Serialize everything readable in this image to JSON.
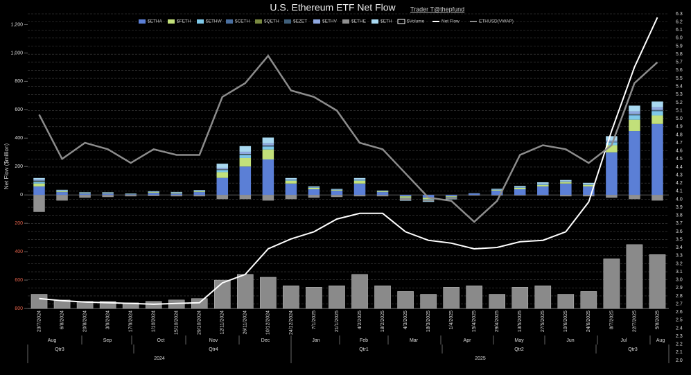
{
  "chart_data": {
    "type": "bar",
    "title": "U.S. Ethereum ETF Net Flow",
    "subtitle": "Trader T@thepfund",
    "y_label": "Net Flow ($million)",
    "categories": [
      "23/7/2024",
      "6/8/2024",
      "20/8/2024",
      "3/9/2024",
      "17/9/2024",
      "1/10/2024",
      "15/10/2024",
      "29/10/2024",
      "12/11/2024",
      "26/11/2024",
      "10/12/2024",
      "24/12/2024",
      "7/1/2025",
      "21/1/2025",
      "4/2/2025",
      "18/2/2025",
      "4/3/2025",
      "18/3/2025",
      "1/4/2025",
      "15/4/2025",
      "29/4/2025",
      "13/5/2025",
      "27/5/2025",
      "10/6/2025",
      "24/6/2025",
      "8/7/2025",
      "22/7/2025",
      "5/8/2025"
    ],
    "months": [
      "Aug",
      "Sep",
      "Oct",
      "Nov",
      "Dec",
      "Jan",
      "Feb",
      "Mar",
      "Apr",
      "May",
      "Jun",
      "Jul",
      "Aug"
    ],
    "quarters": [
      "Qtr3",
      "Qtr4",
      "Qtr1",
      "Qtr2",
      "Qtr3"
    ],
    "years": [
      "2024",
      "2025"
    ],
    "series": [
      {
        "name": "$ETHA",
        "color": "#5b7fd6",
        "values": [
          60,
          20,
          10,
          10,
          5,
          15,
          10,
          20,
          120,
          200,
          250,
          80,
          40,
          30,
          80,
          20,
          -10,
          -20,
          -10,
          10,
          30,
          40,
          60,
          80,
          60,
          300,
          450,
          500
        ]
      },
      {
        "name": "$FETH",
        "color": "#c2e07a",
        "values": [
          20,
          5,
          3,
          3,
          2,
          5,
          5,
          5,
          40,
          60,
          70,
          20,
          10,
          5,
          20,
          5,
          -10,
          -10,
          -5,
          0,
          5,
          10,
          10,
          10,
          10,
          50,
          80,
          60
        ]
      },
      {
        "name": "$ETHW",
        "color": "#7ec8e8",
        "values": [
          10,
          3,
          2,
          2,
          1,
          2,
          2,
          3,
          15,
          20,
          20,
          5,
          3,
          2,
          5,
          2,
          -2,
          -3,
          -2,
          0,
          2,
          3,
          5,
          3,
          3,
          20,
          30,
          30
        ]
      },
      {
        "name": "$CETH",
        "color": "#4a6fa0",
        "values": [
          5,
          1,
          0,
          0,
          0,
          0,
          0,
          1,
          3,
          5,
          5,
          1,
          0,
          0,
          1,
          0,
          0,
          0,
          0,
          0,
          0,
          0,
          1,
          0,
          0,
          2,
          5,
          5
        ]
      },
      {
        "name": "$QETH",
        "color": "#7a8a40",
        "values": [
          3,
          0,
          0,
          0,
          0,
          0,
          0,
          0,
          1,
          2,
          2,
          0,
          0,
          0,
          0,
          0,
          0,
          0,
          0,
          0,
          0,
          0,
          0,
          0,
          0,
          1,
          2,
          1
        ]
      },
      {
        "name": "$EZET",
        "color": "#3f5f7a",
        "values": [
          3,
          0,
          0,
          0,
          0,
          0,
          0,
          0,
          1,
          2,
          2,
          0,
          0,
          0,
          0,
          0,
          0,
          0,
          0,
          0,
          0,
          0,
          0,
          0,
          0,
          1,
          2,
          2
        ]
      },
      {
        "name": "$ETHV",
        "color": "#8fa8e0",
        "values": [
          8,
          2,
          1,
          1,
          0,
          1,
          1,
          1,
          10,
          15,
          15,
          3,
          2,
          1,
          3,
          1,
          -1,
          -1,
          -1,
          0,
          1,
          2,
          3,
          2,
          2,
          10,
          20,
          20
        ]
      },
      {
        "name": "$ETHE",
        "color": "#909090",
        "values": [
          -120,
          -40,
          -20,
          -15,
          -10,
          -8,
          -10,
          -10,
          -30,
          -30,
          -40,
          -30,
          -20,
          -15,
          -10,
          -10,
          -15,
          -10,
          -10,
          -5,
          -5,
          -5,
          -5,
          -10,
          -10,
          -20,
          -30,
          -40
        ]
      },
      {
        "name": "$ETH",
        "color": "#a8d8f0",
        "values": [
          10,
          5,
          3,
          3,
          2,
          3,
          3,
          4,
          30,
          40,
          40,
          10,
          5,
          4,
          10,
          3,
          -3,
          -5,
          -3,
          2,
          5,
          8,
          10,
          10,
          10,
          30,
          40,
          40
        ]
      },
      {
        "name": "$Volume",
        "kind": "volume",
        "color": "#8a8a8a",
        "values": [
          -700,
          -740,
          -750,
          -750,
          -760,
          -750,
          -740,
          -730,
          -600,
          -560,
          -580,
          -640,
          -650,
          -640,
          -560,
          -640,
          -680,
          -700,
          -650,
          -640,
          -700,
          -650,
          -640,
          -700,
          -680,
          -450,
          -350,
          -420
        ]
      },
      {
        "name": "Net Flow",
        "kind": "line",
        "color": "#ffffff",
        "values": [
          -730,
          -745,
          -755,
          -760,
          -765,
          -770,
          -765,
          -760,
          -620,
          -560,
          -380,
          -310,
          -260,
          -170,
          -130,
          -130,
          -260,
          -320,
          -340,
          -380,
          -370,
          -330,
          -320,
          -260,
          -50,
          450,
          900,
          1250
        ]
      },
      {
        "name": "ETHUSD(VWAP)",
        "kind": "line",
        "axis": "y2",
        "color": "#8c8c8c",
        "values": [
          5.05,
          4.5,
          4.7,
          4.62,
          4.45,
          4.62,
          4.55,
          4.55,
          5.27,
          5.44,
          5.78,
          5.35,
          5.27,
          5.1,
          4.7,
          4.62,
          4.32,
          4.02,
          3.98,
          3.72,
          3.98,
          4.55,
          4.67,
          4.62,
          4.45,
          4.67,
          5.44,
          5.7
        ]
      }
    ],
    "ylim": [
      -800,
      1300
    ],
    "yticks": [
      {
        "value": 1200,
        "label": "1,200"
      },
      {
        "value": 1000,
        "label": "1,000"
      },
      800,
      600,
      400,
      200,
      0,
      {
        "value": -200,
        "label": "200"
      },
      {
        "value": -400,
        "label": "400"
      },
      {
        "value": -600,
        "label": "600"
      },
      {
        "value": -800,
        "label": "800"
      }
    ],
    "y2lim": [
      2.0,
      6.3
    ],
    "y2ticks": [
      {
        "value": 2.0,
        "label": "2.0"
      },
      2.1,
      2.2,
      2.3,
      2.4,
      2.5,
      2.6,
      2.7,
      2.8,
      2.9,
      {
        "value": 3.0,
        "label": "3.0"
      },
      3.1,
      3.2,
      3.3,
      3.4,
      3.5,
      3.6,
      3.7,
      3.8,
      3.9,
      {
        "value": 4.0,
        "label": "4.0"
      },
      4.1,
      4.2,
      4.3,
      4.4,
      4.5,
      4.6,
      4.7,
      4.8,
      4.9,
      {
        "value": 5.0,
        "label": "5.0"
      },
      5.1,
      5.2,
      5.3,
      5.4,
      5.5,
      5.6,
      5.7,
      5.8,
      5.9,
      {
        "value": 6.0,
        "label": "6.0"
      },
      6.1,
      6.2,
      6.3
    ],
    "grid": true
  }
}
